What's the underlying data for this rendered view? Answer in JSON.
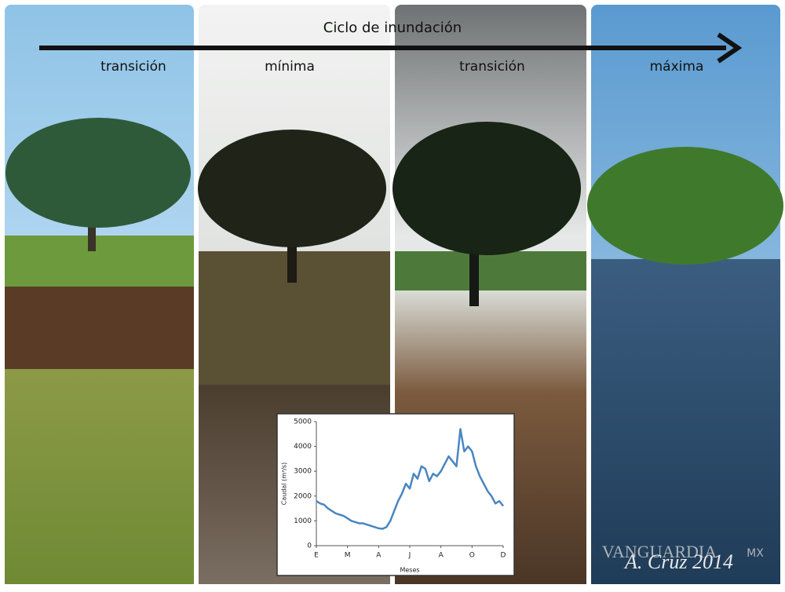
{
  "header": {
    "title": "Ciclo de inundación"
  },
  "panels": [
    {
      "label": "transición"
    },
    {
      "label": "mínima"
    },
    {
      "label": "transición"
    },
    {
      "label": "máxima"
    }
  ],
  "watermark": {
    "brand": "VANGUARDIA",
    "suffix": "MX",
    "credit": "A. Cruz 2014"
  },
  "chart_data": {
    "type": "line",
    "x_label": "Meses",
    "y_label": "Caudal (m³/s)",
    "xlim": [
      0,
      6
    ],
    "ylim": [
      0,
      5000
    ],
    "xticks": [
      {
        "value": 0,
        "label": "E"
      },
      {
        "value": 1,
        "label": "M"
      },
      {
        "value": 2,
        "label": "A"
      },
      {
        "value": 3,
        "label": "J"
      },
      {
        "value": 4,
        "label": "A"
      },
      {
        "value": 5,
        "label": "O"
      },
      {
        "value": 6,
        "label": "D"
      }
    ],
    "yticks": [
      0,
      1000,
      2000,
      3000,
      4000,
      5000
    ],
    "x": [
      0,
      0.125,
      0.25,
      0.375,
      0.5,
      0.625,
      0.75,
      0.875,
      1,
      1.125,
      1.25,
      1.375,
      1.5,
      1.625,
      1.75,
      1.875,
      2,
      2.125,
      2.25,
      2.375,
      2.5,
      2.625,
      2.75,
      2.875,
      3,
      3.125,
      3.25,
      3.375,
      3.5,
      3.625,
      3.75,
      3.875,
      4,
      4.125,
      4.25,
      4.375,
      4.5,
      4.625,
      4.75,
      4.875,
      5,
      5.125,
      5.25,
      5.375,
      5.5,
      5.625,
      5.75,
      5.875,
      6
    ],
    "series": [
      {
        "name": "Caudal",
        "color": "#4a86c0",
        "values": [
          1800,
          1700,
          1650,
          1500,
          1400,
          1300,
          1250,
          1200,
          1100,
          1000,
          950,
          900,
          900,
          850,
          800,
          750,
          700,
          680,
          750,
          1000,
          1400,
          1800,
          2100,
          2500,
          2300,
          2900,
          2700,
          3200,
          3100,
          2600,
          2900,
          2800,
          3000,
          3300,
          3600,
          3400,
          3200,
          4700,
          3800,
          4000,
          3800,
          3200,
          2800,
          2500,
          2200,
          2000,
          1700,
          1800,
          1600
        ]
      }
    ]
  }
}
